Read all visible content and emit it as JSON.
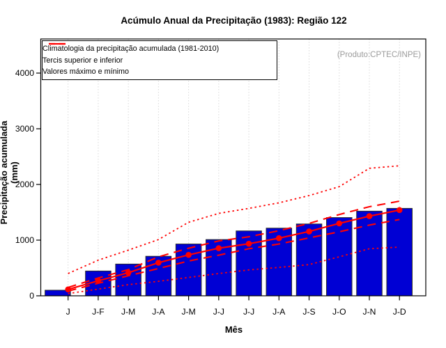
{
  "title": "Acúmulo Anual da Precipitação (1983): Região 122",
  "watermark": "(Produto:CPTEC/INPE)",
  "legend": [
    {
      "style": "solid",
      "label": "Climatologia da precipitação acumulada (1981-2010)"
    },
    {
      "style": "dashed",
      "label": "Tercis superior e inferior"
    },
    {
      "style": "dotted",
      "label": "Valores máximo e mínimo"
    }
  ],
  "colors": {
    "bar_fill": "#0000d4",
    "bar_stroke": "#2a2a2a",
    "line_red": "#ff0000",
    "grid": "#d9d9d9",
    "watermark_gray": "#9b9b9b",
    "axis_black": "#000000"
  },
  "chart_data": {
    "type": "bar",
    "title": "Acúmulo Anual da Precipitação (1983): Região 122",
    "xlabel": "Mês",
    "ylabel": "Precipitação acumulada (mm)",
    "ylim": [
      0,
      4000
    ],
    "yticks": [
      0,
      1000,
      2000,
      3000,
      4000
    ],
    "grid": "vertical-dotted",
    "legend_position": "top-left",
    "categories": [
      "J",
      "J-F",
      "J-M",
      "J-A",
      "J-M",
      "J-J",
      "J-J",
      "J-A",
      "J-S",
      "J-O",
      "J-N",
      "J-D"
    ],
    "series": [
      {
        "name": "Precipitação acumulada (1983)",
        "type": "bar",
        "style": "solid",
        "values": [
          100,
          445,
          570,
          710,
          930,
          1010,
          1165,
          1215,
          1290,
          1405,
          1520,
          1570
        ]
      },
      {
        "name": "Climatologia da precipitação acumulada (1981-2010)",
        "type": "line",
        "style": "solid",
        "marker": "circle",
        "values": [
          115,
          270,
          415,
          595,
          735,
          855,
          935,
          1035,
          1155,
          1300,
          1430,
          1540
        ]
      },
      {
        "name": "Tercil superior",
        "type": "line",
        "style": "dashed",
        "values": [
          150,
          320,
          470,
          700,
          855,
          985,
          1060,
          1170,
          1300,
          1460,
          1600,
          1700
        ]
      },
      {
        "name": "Tercil inferior",
        "type": "line",
        "style": "dashed",
        "values": [
          85,
          225,
          360,
          490,
          625,
          730,
          845,
          930,
          1040,
          1150,
          1270,
          1370
        ]
      },
      {
        "name": "Valor máximo",
        "type": "line",
        "style": "dotted",
        "values": [
          400,
          640,
          820,
          1010,
          1320,
          1480,
          1570,
          1670,
          1800,
          1960,
          2290,
          2335
        ]
      },
      {
        "name": "Valor mínimo",
        "type": "line",
        "style": "dotted",
        "values": [
          40,
          120,
          200,
          260,
          330,
          400,
          465,
          510,
          560,
          700,
          845,
          875
        ]
      }
    ]
  }
}
